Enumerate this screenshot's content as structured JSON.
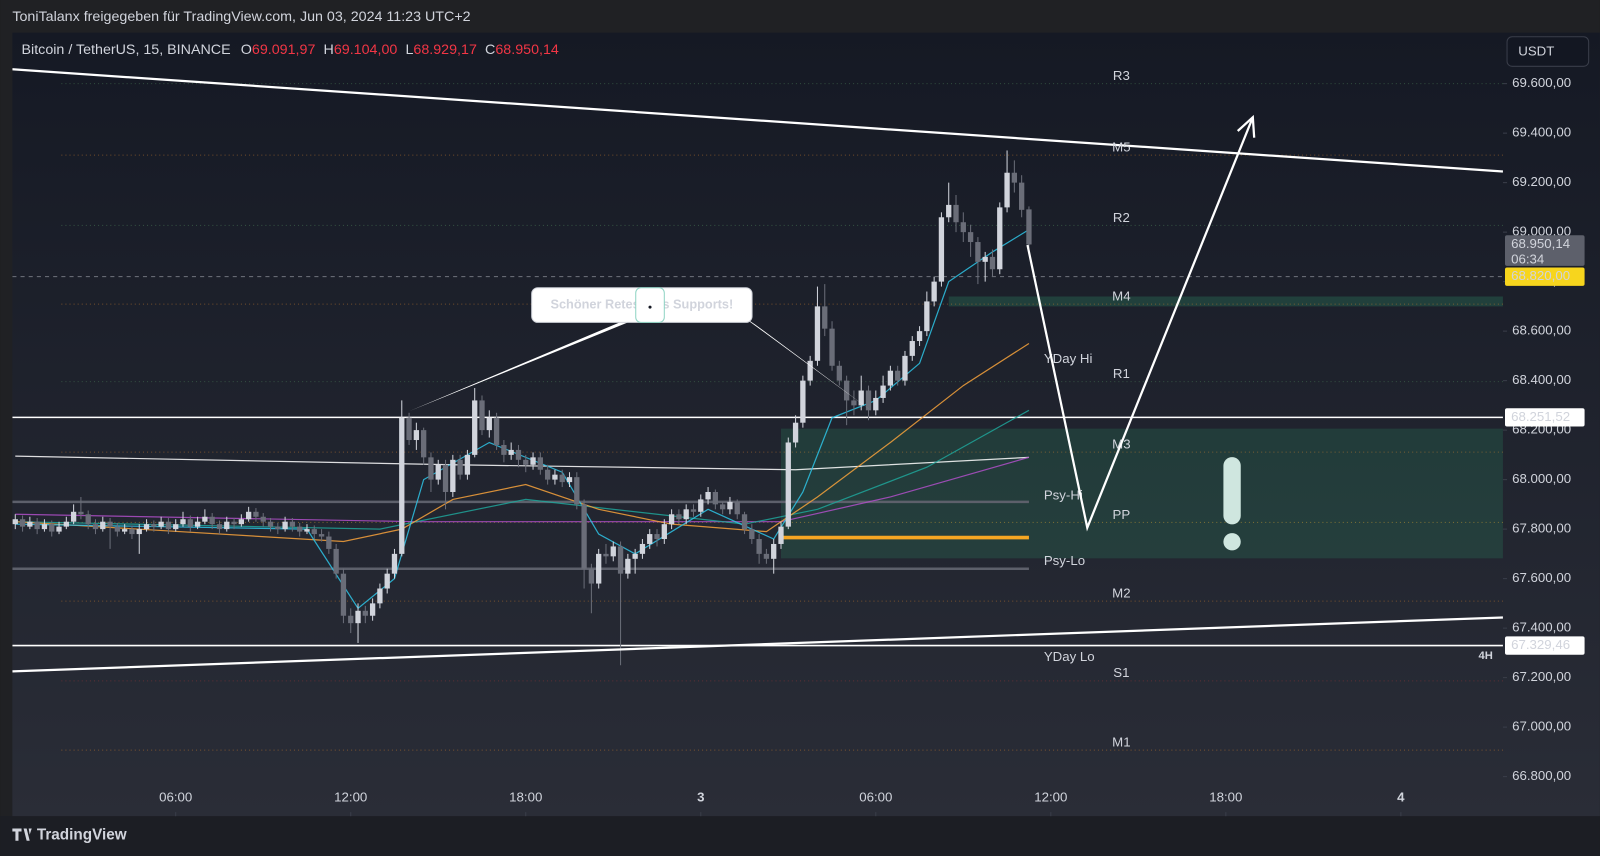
{
  "header": {
    "text": "ToniTalanx freigegeben für TradingView.com, Jun 03, 2024 11:23 UTC+2"
  },
  "footer": {
    "brand": "TradingView"
  },
  "chart_data": {
    "type": "candlestick",
    "symbol": "Bitcoin / TetherUS, 15, BINANCE",
    "ohlc_legend": [
      {
        "name": "O",
        "value": 69091.97,
        "label": "69.091,97"
      },
      {
        "name": "H",
        "value": 69104.0,
        "label": "69.104,00"
      },
      {
        "name": "L",
        "value": 68929.17,
        "label": "68.929,17"
      },
      {
        "name": "C",
        "value": 68950.14,
        "label": "68.950,14"
      }
    ],
    "legend_value_color": "#f23645",
    "currency": "USDT",
    "ylim": [
      66640,
      69806
    ],
    "yticks": [
      {
        "value": 69600,
        "label": "69.600,00"
      },
      {
        "value": 69400,
        "label": "69.400,00"
      },
      {
        "value": 69200,
        "label": "69.200,00"
      },
      {
        "value": 69000,
        "label": "69.000,00"
      },
      {
        "value": 68800,
        "label": "68.800,00"
      },
      {
        "value": 68600,
        "label": "68.600,00"
      },
      {
        "value": 68400,
        "label": "68.400,00"
      },
      {
        "value": 68200,
        "label": "68.200,00"
      },
      {
        "value": 68000,
        "label": "68.000,00"
      },
      {
        "value": 67800,
        "label": "67.800,00"
      },
      {
        "value": 67600,
        "label": "67.600,00"
      },
      {
        "value": 67400,
        "label": "67.400,00"
      },
      {
        "value": 67200,
        "label": "67.200,00"
      },
      {
        "value": 67000,
        "label": "67.000,00"
      },
      {
        "value": 66800,
        "label": "66.800,00"
      }
    ],
    "xlim": [
      -0.4,
      204
    ],
    "xticks": [
      {
        "value": 22,
        "label": "06:00"
      },
      {
        "value": 46,
        "label": "12:00"
      },
      {
        "value": 70,
        "label": "18:00"
      },
      {
        "value": 94,
        "label": "3"
      },
      {
        "value": 118,
        "label": "06:00"
      },
      {
        "value": 142,
        "label": "12:00"
      },
      {
        "value": 166,
        "label": "18:00"
      },
      {
        "value": 190,
        "label": "4"
      }
    ],
    "grid": false,
    "up_color": "#d1d4dc",
    "down_color": "#6a6d78",
    "candles": [
      [
        67820,
        67860,
        67800,
        67840
      ],
      [
        67840,
        67855,
        67790,
        67810
      ],
      [
        67810,
        67850,
        67800,
        67830
      ],
      [
        67830,
        67845,
        67780,
        67800
      ],
      [
        67800,
        67840,
        67790,
        67820
      ],
      [
        67820,
        67835,
        67770,
        67790
      ],
      [
        67790,
        67830,
        67780,
        67810
      ],
      [
        67810,
        67850,
        67800,
        67830
      ],
      [
        67830,
        67900,
        67820,
        67870
      ],
      [
        67870,
        67930,
        67840,
        67860
      ],
      [
        67860,
        67875,
        67800,
        67820
      ],
      [
        67820,
        67840,
        67780,
        67800
      ],
      [
        67800,
        67850,
        67790,
        67830
      ],
      [
        67830,
        67845,
        67720,
        67810
      ],
      [
        67810,
        67825,
        67770,
        67790
      ],
      [
        67790,
        67820,
        67780,
        67800
      ],
      [
        67800,
        67815,
        67760,
        67780
      ],
      [
        67780,
        67820,
        67700,
        67800
      ],
      [
        67800,
        67840,
        67790,
        67820
      ],
      [
        67820,
        67835,
        67790,
        67810
      ],
      [
        67810,
        67850,
        67800,
        67830
      ],
      [
        67830,
        67845,
        67780,
        67800
      ],
      [
        67800,
        67840,
        67790,
        67820
      ],
      [
        67820,
        67870,
        67810,
        67840
      ],
      [
        67840,
        67855,
        67790,
        67810
      ],
      [
        67810,
        67850,
        67800,
        67830
      ],
      [
        67830,
        67880,
        67820,
        67850
      ],
      [
        67850,
        67865,
        67800,
        67820
      ],
      [
        67820,
        67835,
        67780,
        67800
      ],
      [
        67800,
        67850,
        67790,
        67830
      ],
      [
        67830,
        67845,
        67800,
        67820
      ],
      [
        67820,
        67860,
        67810,
        67840
      ],
      [
        67840,
        67890,
        67830,
        67870
      ],
      [
        67870,
        67885,
        67830,
        67850
      ],
      [
        67850,
        67865,
        67810,
        67830
      ],
      [
        67830,
        67845,
        67790,
        67810
      ],
      [
        67810,
        67825,
        67780,
        67800
      ],
      [
        67800,
        67850,
        67790,
        67830
      ],
      [
        67830,
        67845,
        67790,
        67810
      ],
      [
        67810,
        67825,
        67770,
        67790
      ],
      [
        67790,
        67820,
        67780,
        67800
      ],
      [
        67800,
        67815,
        67760,
        67780
      ],
      [
        67780,
        67800,
        67750,
        67770
      ],
      [
        67770,
        67790,
        67700,
        67720
      ],
      [
        67720,
        67740,
        67600,
        67620
      ],
      [
        67620,
        67640,
        67420,
        67450
      ],
      [
        67450,
        67480,
        67380,
        67420
      ],
      [
        67420,
        67500,
        67340,
        67470
      ],
      [
        67470,
        67490,
        67420,
        67450
      ],
      [
        67450,
        67520,
        67430,
        67500
      ],
      [
        67500,
        67580,
        67480,
        67560
      ],
      [
        67560,
        67640,
        67540,
        67620
      ],
      [
        67620,
        67720,
        67600,
        67700
      ],
      [
        67700,
        68320,
        67690,
        68250
      ],
      [
        68250,
        68270,
        68140,
        68160
      ],
      [
        68160,
        68230,
        68120,
        68200
      ],
      [
        68200,
        68210,
        68060,
        68090
      ],
      [
        68090,
        68110,
        67950,
        68000
      ],
      [
        68000,
        68080,
        67980,
        68060
      ],
      [
        68060,
        68080,
        67880,
        67950
      ],
      [
        67950,
        68100,
        67930,
        68080
      ],
      [
        68080,
        68100,
        68000,
        68020
      ],
      [
        68020,
        68120,
        68000,
        68100
      ],
      [
        68100,
        68370,
        68090,
        68320
      ],
      [
        68320,
        68340,
        68180,
        68200
      ],
      [
        68200,
        68280,
        68170,
        68250
      ],
      [
        68250,
        68270,
        68120,
        68140
      ],
      [
        68140,
        68160,
        68070,
        68100
      ],
      [
        68100,
        68150,
        68080,
        68120
      ],
      [
        68120,
        68140,
        68050,
        68080
      ],
      [
        68080,
        68100,
        68030,
        68060
      ],
      [
        68060,
        68110,
        68040,
        68090
      ],
      [
        68090,
        68110,
        68020,
        68040
      ],
      [
        68040,
        68060,
        67980,
        68000
      ],
      [
        68000,
        68040,
        67980,
        68020
      ],
      [
        68020,
        68040,
        67970,
        67990
      ],
      [
        67990,
        68030,
        67970,
        68010
      ],
      [
        68010,
        68030,
        67880,
        67900
      ],
      [
        67900,
        67920,
        67560,
        67640
      ],
      [
        67640,
        67660,
        67460,
        67580
      ],
      [
        67580,
        67720,
        67560,
        67700
      ],
      [
        67700,
        67740,
        67660,
        67690
      ],
      [
        67690,
        67750,
        67670,
        67730
      ],
      [
        67730,
        67750,
        67250,
        67620
      ],
      [
        67620,
        67700,
        67600,
        67680
      ],
      [
        67680,
        67720,
        67620,
        67700
      ],
      [
        67700,
        67760,
        67680,
        67740
      ],
      [
        67740,
        67800,
        67720,
        67780
      ],
      [
        67780,
        67800,
        67730,
        67760
      ],
      [
        67760,
        67840,
        67740,
        67820
      ],
      [
        67820,
        67880,
        67800,
        67860
      ],
      [
        67860,
        67880,
        67820,
        67840
      ],
      [
        67840,
        67900,
        67820,
        67880
      ],
      [
        67880,
        67900,
        67850,
        67870
      ],
      [
        67870,
        67940,
        67850,
        67920
      ],
      [
        67920,
        67970,
        67900,
        67950
      ],
      [
        67950,
        67960,
        67880,
        67900
      ],
      [
        67900,
        67910,
        67860,
        67880
      ],
      [
        67880,
        67930,
        67860,
        67910
      ],
      [
        67910,
        67920,
        67840,
        67860
      ],
      [
        67860,
        67870,
        67780,
        67800
      ],
      [
        67800,
        67820,
        67740,
        67760
      ],
      [
        67760,
        67780,
        67660,
        67700
      ],
      [
        67700,
        67720,
        67660,
        67680
      ],
      [
        67680,
        67760,
        67620,
        67740
      ],
      [
        67740,
        67830,
        67720,
        67810
      ],
      [
        67810,
        68170,
        67800,
        68150
      ],
      [
        68150,
        68260,
        68130,
        68230
      ],
      [
        68230,
        68420,
        68210,
        68400
      ],
      [
        68400,
        68500,
        68380,
        68480
      ],
      [
        68480,
        68780,
        68460,
        68700
      ],
      [
        68700,
        68790,
        68580,
        68610
      ],
      [
        68610,
        68640,
        68440,
        68460
      ],
      [
        68460,
        68480,
        68380,
        68400
      ],
      [
        68400,
        68420,
        68220,
        68320
      ],
      [
        68320,
        68360,
        68260,
        68300
      ],
      [
        68300,
        68420,
        68280,
        68360
      ],
      [
        68360,
        68380,
        68240,
        68280
      ],
      [
        68280,
        68360,
        68260,
        68330
      ],
      [
        68330,
        68420,
        68310,
        68380
      ],
      [
        68380,
        68460,
        68360,
        68440
      ],
      [
        68440,
        68460,
        68380,
        68400
      ],
      [
        68400,
        68520,
        68380,
        68500
      ],
      [
        68500,
        68580,
        68480,
        68560
      ],
      [
        68560,
        68620,
        68540,
        68600
      ],
      [
        68600,
        68760,
        68580,
        68720
      ],
      [
        68720,
        68820,
        68700,
        68800
      ],
      [
        68800,
        69080,
        68780,
        69060
      ],
      [
        69060,
        69200,
        69040,
        69110
      ],
      [
        69110,
        69150,
        69000,
        69040
      ],
      [
        69040,
        69080,
        68960,
        69000
      ],
      [
        69000,
        69030,
        68900,
        68960
      ],
      [
        68960,
        68980,
        68790,
        68880
      ],
      [
        68880,
        68920,
        68800,
        68900
      ],
      [
        68900,
        68930,
        68820,
        68850
      ],
      [
        68850,
        69120,
        68830,
        69100
      ],
      [
        69100,
        69330,
        69080,
        69240
      ],
      [
        69240,
        69290,
        69160,
        69200
      ],
      [
        69200,
        69230,
        69060,
        69090
      ],
      [
        69091.97,
        69104,
        68929.17,
        68950.14
      ]
    ],
    "moving_averages": [
      {
        "color": "#ffffff",
        "x": [
          0,
          60,
          107,
          139
        ],
        "values": [
          68095,
          68060,
          68040,
          68090
        ]
      },
      {
        "color": "#b04fc9",
        "x": [
          0,
          55,
          80,
          105,
          120,
          139
        ],
        "values": [
          67860,
          67830,
          67830,
          67830,
          67930,
          68090
        ]
      },
      {
        "color": "#1fa59a",
        "x": [
          0,
          50,
          70,
          100,
          110,
          125,
          139
        ],
        "values": [
          67830,
          67800,
          67920,
          67820,
          67880,
          68050,
          68280
        ]
      },
      {
        "color": "#f7a23b",
        "x": [
          0,
          45,
          53,
          60,
          70,
          80,
          90,
          103,
          110,
          120,
          130,
          139
        ],
        "values": [
          67830,
          67750,
          67800,
          67920,
          67980,
          67880,
          67820,
          67790,
          67930,
          68150,
          68380,
          68550
        ]
      },
      {
        "color": "#2ec4e6",
        "x": [
          0,
          40,
          47,
          52,
          56,
          65,
          75,
          80,
          85,
          95,
          104,
          108,
          112,
          118,
          124,
          128,
          134,
          139
        ],
        "values": [
          67820,
          67800,
          67480,
          67600,
          68000,
          68150,
          68030,
          67780,
          67700,
          67880,
          67760,
          67950,
          68250,
          68320,
          68470,
          68800,
          68920,
          69010
        ]
      }
    ],
    "zones": [
      {
        "from": 105,
        "to": 204,
        "low": 67682,
        "high": 68206,
        "color": "rgba(46,160,110,0.2)"
      },
      {
        "from": 128,
        "to": 204,
        "low": 68700,
        "high": 68740,
        "color": "rgba(46,160,110,0.25)"
      }
    ],
    "levels": [
      {
        "name": "R3",
        "value": 69600,
        "color": "#4f8a5e"
      },
      {
        "name": "M5",
        "value": 69311,
        "color": "#e08a2e"
      },
      {
        "name": "R2",
        "value": 69027,
        "color": "#4f8a5e"
      },
      {
        "name": "M4",
        "value": 68709,
        "color": "#e08a2e"
      },
      {
        "name": "R1",
        "value": 68396,
        "color": "#4f8a5e"
      },
      {
        "name": "M3",
        "value": 68111,
        "color": "#e08a2e"
      },
      {
        "name": "PP",
        "value": 67827,
        "color": "#d9a62e"
      },
      {
        "name": "M2",
        "value": 67509,
        "color": "#e08a2e"
      },
      {
        "name": "S1",
        "value": 67187,
        "color": "#a63a3a"
      },
      {
        "name": "M1",
        "value": 66907,
        "color": "#e08a2e"
      }
    ],
    "tags": [
      {
        "name": "YDay Hi",
        "value": 68486,
        "color": "#2962ff"
      },
      {
        "name": "Psy-Hi",
        "value": 67934,
        "color": "#5d606b"
      },
      {
        "name": "Psy-Lo",
        "value": 67670,
        "color": "#5d606b"
      },
      {
        "name": "YDay Lo",
        "value": 67282,
        "color": "#2962ff"
      }
    ],
    "hlines": [
      {
        "value": 68820,
        "color": "#70737d",
        "style": "dashed",
        "from": -0.4,
        "to": 204
      },
      {
        "value": 68251.52,
        "color": "#ffffff",
        "style": "solid",
        "from": -0.4,
        "to": 204
      },
      {
        "value": 67329.46,
        "color": "#ffffff",
        "style": "solid",
        "from": -0.4,
        "to": 204
      },
      {
        "value": 67910,
        "color": "#5d606b",
        "style": "thick",
        "from": -0.4,
        "to": 139
      },
      {
        "value": 67640,
        "color": "#5d606b",
        "style": "thick",
        "from": -0.4,
        "to": 139
      },
      {
        "value": 67766,
        "color": "#f5a623",
        "style": "heavy",
        "from": 105,
        "to": 139
      }
    ],
    "trendlines": [
      {
        "x": [
          -0.4,
          204
        ],
        "values": [
          69658,
          69245
        ]
      },
      {
        "x": [
          -0.4,
          204
        ],
        "values": [
          67225,
          67443
        ]
      }
    ],
    "arrow": {
      "x": [
        138.8,
        147,
        169.7
      ],
      "values": [
        68948,
        67806,
        69464
      ]
    },
    "callout": {
      "text": "Schöner Retest des Supports!",
      "x": [
        54,
        117.5
      ],
      "values": [
        68276,
        68276
      ]
    },
    "price_labels": [
      {
        "value": 68950.14,
        "label": "68.950,14",
        "sub": "06:34",
        "color": "#5d606b",
        "text_color": "#ffffff"
      },
      {
        "value": 68820,
        "label": "68.820,00",
        "color": "#f7d51d",
        "text_color": "#131722"
      },
      {
        "value": 68251.52,
        "label": "68.251,52",
        "color": "#ffffff",
        "text_color": "#131722"
      },
      {
        "value": 67329.46,
        "label": "67.329,46",
        "color": "#ffffff",
        "text_color": "#131722"
      }
    ],
    "timeframe_tag": "4H"
  }
}
